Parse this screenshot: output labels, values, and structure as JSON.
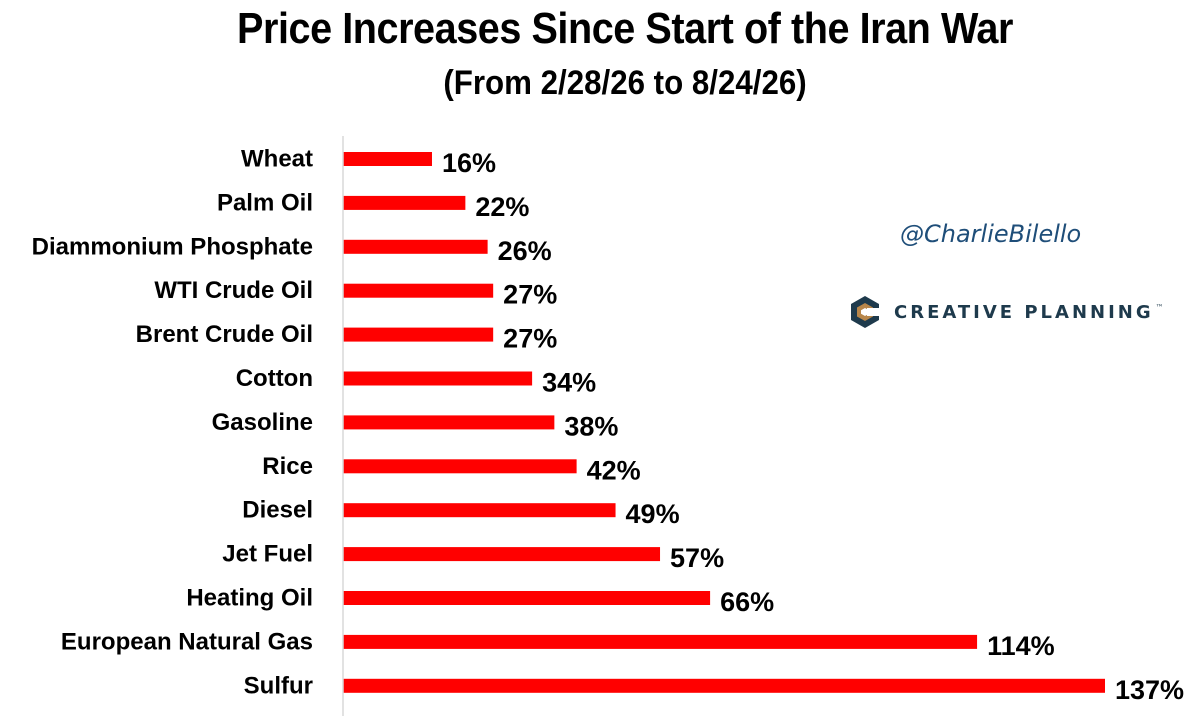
{
  "chart_data": {
    "type": "bar",
    "orientation": "horizontal",
    "title": "Price Increases Since Start of the Iran War",
    "subtitle": "(From 2/28/26 to 8/24/26)",
    "categories": [
      "Wheat",
      "Palm Oil",
      "Diammonium Phosphate",
      "WTI Crude Oil",
      "Brent Crude Oil",
      "Cotton",
      "Gasoline",
      "Rice",
      "Diesel",
      "Jet Fuel",
      "Heating Oil",
      "European Natural Gas",
      "Sulfur"
    ],
    "values": [
      16,
      22,
      26,
      27,
      27,
      34,
      38,
      42,
      49,
      57,
      66,
      114,
      137
    ],
    "value_labels": [
      "16%",
      "22%",
      "26%",
      "27%",
      "27%",
      "34%",
      "38%",
      "42%",
      "49%",
      "57%",
      "66%",
      "114%",
      "137%"
    ],
    "value_unit": "%",
    "xlabel": "",
    "ylabel": "",
    "xlim": [
      0,
      137
    ],
    "grid": false,
    "legend": "none",
    "bar_color": "#ff0000"
  },
  "watermark": {
    "handle": "@CharlieBilello",
    "brand_name": "CREATIVE PLANNING",
    "brand_mark": "™",
    "handle_color": "#1f4e79",
    "brand_color": "#1e3a4c",
    "brand_accent": "#b8864a",
    "brand_icon": "creative-planning-logo-icon"
  }
}
